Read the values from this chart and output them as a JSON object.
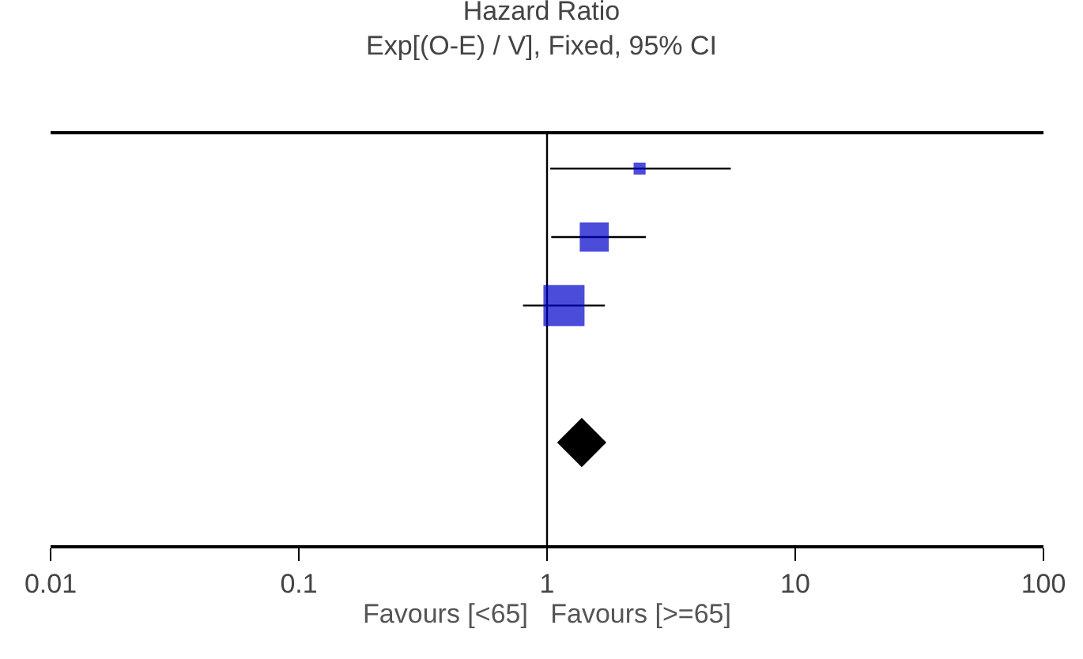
{
  "chart_data": {
    "type": "bubble",
    "orientation": "horizontal",
    "title": "Hazard Ratio",
    "subtitle": "Exp[(O-E) / V], Fixed, 95% CI",
    "xlabel": "Favours [<65]   Favours [>=65]",
    "categories": [
      null,
      null,
      null,
      null,
      null,
      null
    ],
    "series": [
      {
        "color": "#0000cc",
        "marker": "square",
        "values": [
          2.36,
          1.55,
          1.17,
          null,
          null,
          null
        ],
        "sizes": [
          0.085,
          0.5,
          1,
          null,
          null,
          null
        ],
        "errors": [
          [
            1.03,
            5.5
          ],
          [
            1.04,
            2.5
          ],
          [
            0.8,
            1.71
          ],
          null,
          null,
          null
        ]
      },
      {
        "type": "scatter",
        "color": "#000000",
        "marker": "diamond",
        "values": [
          null,
          null,
          null,
          null,
          1.38,
          null
        ]
      }
    ],
    "log": "x",
    "xlim": [
      0.01,
      100
    ],
    "xticks": [
      0.01,
      0.1,
      1,
      10,
      100
    ],
    "ref_lines": [
      {
        "axis": "x",
        "value": 1,
        "color": "#000000"
      }
    ],
    "grid": false,
    "tick_labels": "x"
  }
}
